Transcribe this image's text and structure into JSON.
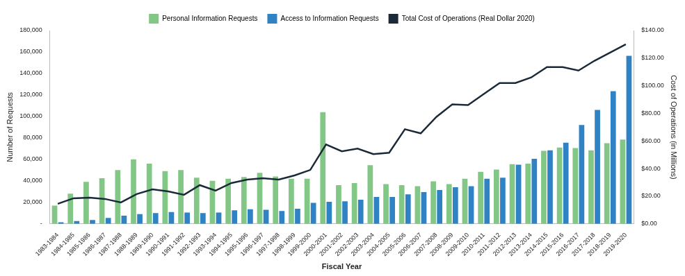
{
  "chart_data": {
    "type": "bar",
    "x_label": "Fiscal Year",
    "y_label": "Number of Requests",
    "y2_label": "Cost of Operations (in Millions)",
    "categories": [
      "1983-1984",
      "1984-1985",
      "1985-1986",
      "1986-1987",
      "1987-1988",
      "1988-1989",
      "1989-1990",
      "1990-1991",
      "1991-1992",
      "1992-1993",
      "1993-1994",
      "1994-1995",
      "1995-1996",
      "1996-1997",
      "1997-1998",
      "1998-1999",
      "1999-2000",
      "2000-2001",
      "2001-2002",
      "2002-2003",
      "2003-2004",
      "2004-2005",
      "2005-2006",
      "2006-2007",
      "2007-2008",
      "2008-2009",
      "2009-2010",
      "2010-2011",
      "2011-2012",
      "2012-2013",
      "2013-2014",
      "2014-2015",
      "2015-2016",
      "2016-2017",
      "2017-2018",
      "2018-2019",
      "2019-2020"
    ],
    "series": [
      {
        "name": "Personal Information Requests",
        "type": "bar",
        "color": "#82c785",
        "values": [
          17000,
          28000,
          39000,
          42500,
          50000,
          60000,
          56000,
          49000,
          50000,
          43000,
          40000,
          42000,
          43500,
          47500,
          44000,
          42000,
          42000,
          104000,
          36000,
          38000,
          54500,
          37000,
          36000,
          35000,
          39500,
          37000,
          42000,
          48500,
          50500,
          55500,
          56000,
          68000,
          71000,
          70500,
          68500,
          75000,
          78500
        ]
      },
      {
        "name": "Access to Information Requests",
        "type": "bar",
        "color": "#2f83c5",
        "values": [
          1500,
          2500,
          3500,
          5500,
          7500,
          9000,
          10000,
          11000,
          10500,
          10000,
          10500,
          12500,
          13500,
          13000,
          12000,
          14000,
          19500,
          20500,
          21000,
          22500,
          25000,
          25000,
          27500,
          29500,
          31500,
          34000,
          35000,
          42000,
          43000,
          55000,
          60500,
          68500,
          75500,
          92000,
          106000,
          123500,
          156500
        ]
      },
      {
        "name": "Total Cost of Operations (Real Dollar 2020)",
        "type": "line",
        "color": "#1b2a38",
        "axis": "y2",
        "marker": "none",
        "line_style": "solid",
        "values": [
          14.5,
          18.5,
          19,
          18,
          15.5,
          21.5,
          25,
          23.5,
          21,
          28,
          24,
          29.5,
          32,
          33,
          32,
          35,
          39,
          57.5,
          52.5,
          54.5,
          50.5,
          51.5,
          68.5,
          65.5,
          77.5,
          86.5,
          86,
          94,
          102,
          102,
          106,
          113.5,
          113.5,
          111,
          118,
          124,
          130
        ]
      }
    ],
    "ylim": [
      0,
      180000
    ],
    "yticks": [
      {
        "value": 0,
        "label": "-"
      },
      {
        "value": 20000,
        "label": "20,000"
      },
      {
        "value": 40000,
        "label": "40,000"
      },
      {
        "value": 60000,
        "label": "60,000"
      },
      {
        "value": 80000,
        "label": "80,000"
      },
      {
        "value": 100000,
        "label": "100,000"
      },
      {
        "value": 120000,
        "label": "120,000"
      },
      {
        "value": 140000,
        "label": "140,000"
      },
      {
        "value": 160000,
        "label": "160,000"
      },
      {
        "value": 180000,
        "label": "180,000"
      }
    ],
    "y2lim": [
      0,
      140
    ],
    "y2ticks": [
      {
        "value": 0,
        "label": "$0.00"
      },
      {
        "value": 20,
        "label": "$20.00"
      },
      {
        "value": 40,
        "label": "$40.00"
      },
      {
        "value": 60,
        "label": "$60.00"
      },
      {
        "value": 80,
        "label": "$80.00"
      },
      {
        "value": 100,
        "label": "$100.00"
      },
      {
        "value": 120,
        "label": "$120.00"
      },
      {
        "value": 140,
        "label": "$140.00"
      }
    ],
    "grid": false,
    "legend": "top"
  }
}
